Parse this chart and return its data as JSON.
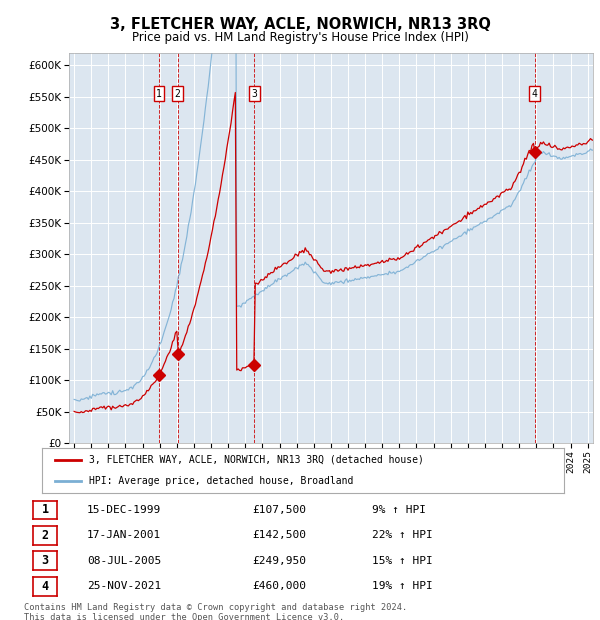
{
  "title": "3, FLETCHER WAY, ACLE, NORWICH, NR13 3RQ",
  "subtitle": "Price paid vs. HM Land Registry's House Price Index (HPI)",
  "plot_bg_color": "#dce6f0",
  "red_color": "#cc0000",
  "blue_color": "#7bafd4",
  "ylim": [
    0,
    620000
  ],
  "yticks": [
    0,
    50000,
    100000,
    150000,
    200000,
    250000,
    300000,
    350000,
    400000,
    450000,
    500000,
    550000,
    600000
  ],
  "x_start_year": 1995,
  "x_end_year": 2026,
  "sales": [
    {
      "label": "1",
      "date_num": 1999.958,
      "price": 107500
    },
    {
      "label": "2",
      "date_num": 2001.046,
      "price": 142500
    },
    {
      "label": "3",
      "date_num": 2005.519,
      "price": 249950
    },
    {
      "label": "4",
      "date_num": 2021.899,
      "price": 460000
    }
  ],
  "legend_label_red": "3, FLETCHER WAY, ACLE, NORWICH, NR13 3RQ (detached house)",
  "legend_label_blue": "HPI: Average price, detached house, Broadland",
  "table_rows": [
    {
      "num": "1",
      "date": "15-DEC-1999",
      "price": "£107,500",
      "pct": "9% ↑ HPI"
    },
    {
      "num": "2",
      "date": "17-JAN-2001",
      "price": "£142,500",
      "pct": "22% ↑ HPI"
    },
    {
      "num": "3",
      "date": "08-JUL-2005",
      "price": "£249,950",
      "pct": "15% ↑ HPI"
    },
    {
      "num": "4",
      "date": "25-NOV-2021",
      "price": "£460,000",
      "pct": "19% ↑ HPI"
    }
  ],
  "footnote": "Contains HM Land Registry data © Crown copyright and database right 2024.\nThis data is licensed under the Open Government Licence v3.0."
}
